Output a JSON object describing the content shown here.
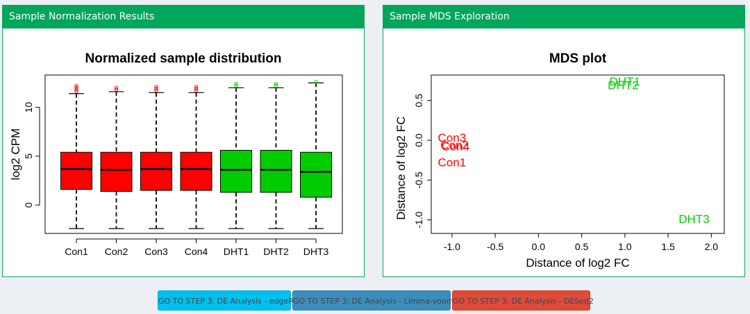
{
  "panels": {
    "left_title": "Sample Normalization Results",
    "right_title": "Sample MDS Exploration"
  },
  "buttons": {
    "edger": "GO TO STEP 3: DE Analysis - edgeR",
    "limma": "GO TO STEP 3: DE Analysis - Limma-voom",
    "deseq2": "GO TO STEP 3: DE Analysis - DESeq2"
  },
  "colors": {
    "con": "#ff0000",
    "dht": "#00cc00",
    "header": "#00a65a"
  },
  "chart_data": [
    {
      "type": "box",
      "title": "Normalized sample distribution",
      "ylabel": "log2 CPM",
      "xlabel": "",
      "ylim": [
        -2.9,
        13.3
      ],
      "yticks": [
        0,
        5,
        10
      ],
      "categories": [
        "Con1",
        "Con2",
        "Con3",
        "Con4",
        "DHT1",
        "DHT2",
        "DHT3"
      ],
      "groups": [
        "con",
        "con",
        "con",
        "con",
        "dht",
        "dht",
        "dht"
      ],
      "boxes": [
        {
          "min": -2.4,
          "q1": 1.6,
          "median": 3.7,
          "q3": 5.4,
          "max": 11.4,
          "outliers": [
            11.6,
            11.8,
            12.0,
            12.2
          ]
        },
        {
          "min": -2.4,
          "q1": 1.4,
          "median": 3.6,
          "q3": 5.4,
          "max": 11.6,
          "outliers": [
            11.8,
            12.0
          ]
        },
        {
          "min": -2.4,
          "q1": 1.5,
          "median": 3.7,
          "q3": 5.4,
          "max": 11.5,
          "outliers": [
            11.7,
            11.9,
            12.1
          ]
        },
        {
          "min": -2.4,
          "q1": 1.5,
          "median": 3.7,
          "q3": 5.4,
          "max": 11.5,
          "outliers": [
            11.7,
            11.9,
            12.1
          ]
        },
        {
          "min": -2.4,
          "q1": 1.3,
          "median": 3.6,
          "q3": 5.6,
          "max": 12.0,
          "outliers": [
            12.2,
            12.4
          ]
        },
        {
          "min": -2.4,
          "q1": 1.3,
          "median": 3.6,
          "q3": 5.6,
          "max": 12.0,
          "outliers": [
            12.2,
            12.4
          ]
        },
        {
          "min": -2.4,
          "q1": 0.8,
          "median": 3.4,
          "q3": 5.4,
          "max": 12.5,
          "outliers": [
            12.6
          ]
        }
      ]
    },
    {
      "type": "scatter",
      "title": "MDS plot",
      "xlabel": "Distance of log2 FC",
      "ylabel": "Distance of log2 FC",
      "xlim": [
        -1.24,
        2.15
      ],
      "ylim": [
        -1.17,
        0.82
      ],
      "xticks": [
        -1.0,
        -0.5,
        0.0,
        0.5,
        1.0,
        1.5,
        2.0
      ],
      "yticks": [
        -1.0,
        -0.5,
        0.0,
        0.5
      ],
      "points": [
        {
          "label": "DHT1",
          "x": 1.0,
          "y": 0.73,
          "group": "dht"
        },
        {
          "label": "DHT2",
          "x": 0.98,
          "y": 0.68,
          "group": "dht"
        },
        {
          "label": "Con3",
          "x": -1.0,
          "y": 0.02,
          "group": "con"
        },
        {
          "label": "Con2",
          "x": -0.97,
          "y": -0.07,
          "group": "con"
        },
        {
          "label": "Con4",
          "x": -0.96,
          "y": -0.09,
          "group": "con"
        },
        {
          "label": "Con1",
          "x": -1.0,
          "y": -0.29,
          "group": "con"
        },
        {
          "label": "DHT3",
          "x": 1.8,
          "y": -1.0,
          "group": "dht"
        }
      ]
    }
  ]
}
